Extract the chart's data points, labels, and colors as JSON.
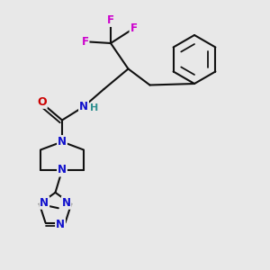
{
  "bg_color": "#e8e8e8",
  "atom_colors": {
    "C": "#000000",
    "N": "#1010cc",
    "O": "#cc0000",
    "F": "#cc00cc",
    "H": "#2f9090"
  },
  "bond_color": "#111111",
  "bond_width": 1.5,
  "figsize": [
    3.0,
    3.0
  ],
  "dpi": 100
}
